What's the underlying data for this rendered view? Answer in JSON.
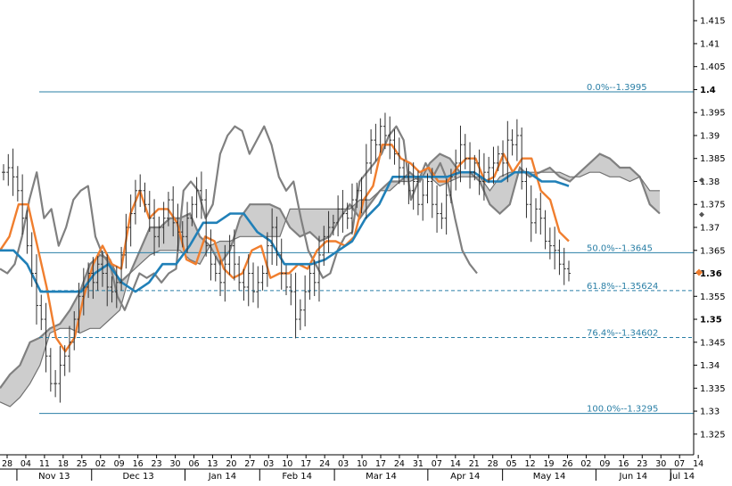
{
  "chart_data": {
    "type": "line",
    "title": "",
    "xlabel": "",
    "ylabel": "",
    "ylim": [
      1.3205,
      1.4195
    ],
    "y_ticks": [
      "1.325",
      "1.33",
      "1.335",
      "1.34",
      "1.345",
      "1.35",
      "1.355",
      "1.36",
      "1.365",
      "1.37",
      "1.375",
      "1.38",
      "1.385",
      "1.39",
      "1.395",
      "1.4",
      "1.405",
      "1.41",
      "1.415"
    ],
    "x_ticks": [
      "28",
      "04",
      "11",
      "18",
      "25",
      "02",
      "09",
      "16",
      "23",
      "30",
      "06",
      "13",
      "20",
      "27",
      "03",
      "10",
      "17",
      "24",
      "03",
      "10",
      "17",
      "24",
      "31",
      "07",
      "14",
      "21",
      "28",
      "05",
      "12",
      "19",
      "26",
      "02",
      "09",
      "16",
      "23",
      "30",
      "07",
      "14"
    ],
    "months": [
      "Nov 13",
      "Dec 13",
      "Jan 14",
      "Feb 14",
      "Mar 14",
      "Apr 14",
      "May 14",
      "Jun 14",
      "Jul 14"
    ],
    "last_price": 1.3602,
    "fib_levels": [
      {
        "label": "0.0%--1.3995",
        "value": 1.3995,
        "style": "solid"
      },
      {
        "label": "50.0%--1.3645",
        "value": 1.3645,
        "style": "solid"
      },
      {
        "label": "61.8%--1.35624",
        "value": 1.35624,
        "style": "dashed"
      },
      {
        "label": "76.4%--1.34602",
        "value": 1.34602,
        "style": "dashed"
      },
      {
        "label": "100.0%--1.3295",
        "value": 1.3295,
        "style": "solid"
      }
    ],
    "series": [
      {
        "type": "ohlc",
        "color": "#303030",
        "values": [
          1.382,
          1.383,
          1.381,
          1.378,
          1.372,
          1.366,
          1.36,
          1.353,
          1.35,
          1.342,
          1.336,
          1.336,
          1.34,
          1.342,
          1.345,
          1.35,
          1.355,
          1.357,
          1.36,
          1.358,
          1.362,
          1.36,
          1.357,
          1.356,
          1.358,
          1.364,
          1.37,
          1.373,
          1.378,
          1.378,
          1.375,
          1.372,
          1.368,
          1.37,
          1.372,
          1.376,
          1.371,
          1.369,
          1.368,
          1.372,
          1.375,
          1.378,
          1.376,
          1.366,
          1.362,
          1.36,
          1.358,
          1.362,
          1.366,
          1.362,
          1.358,
          1.357,
          1.36,
          1.356,
          1.358,
          1.36,
          1.366,
          1.37,
          1.364,
          1.36,
          1.357,
          1.356,
          1.35,
          1.352,
          1.356,
          1.36,
          1.358,
          1.364,
          1.368,
          1.37,
          1.371,
          1.374,
          1.373,
          1.372,
          1.376,
          1.378,
          1.376,
          1.384,
          1.389,
          1.388,
          1.392,
          1.39,
          1.389,
          1.386,
          1.383,
          1.381,
          1.378,
          1.38,
          1.375,
          1.377,
          1.38,
          1.375,
          1.373,
          1.372,
          1.377,
          1.381,
          1.384,
          1.388,
          1.385,
          1.382,
          1.384,
          1.38,
          1.382,
          1.383,
          1.384,
          1.386,
          1.384,
          1.389,
          1.388,
          1.39,
          1.38,
          1.375,
          1.371,
          1.374,
          1.372,
          1.367,
          1.366,
          1.365,
          1.362,
          1.361,
          1.36
        ]
      },
      {
        "type": "line",
        "name": "",
        "color": "#808080",
        "values": [
          1.361,
          1.36,
          1.362,
          1.368,
          1.376,
          1.382,
          1.372,
          1.374,
          1.366,
          1.37,
          1.376,
          1.378,
          1.379,
          1.368,
          1.364,
          1.362,
          1.355,
          1.352,
          1.356,
          1.36,
          1.359,
          1.36,
          1.358,
          1.36,
          1.361,
          1.378,
          1.38,
          1.378,
          1.372,
          1.375,
          1.386,
          1.39,
          1.392,
          1.391,
          1.386,
          1.389,
          1.392,
          1.388,
          1.381,
          1.378,
          1.38,
          1.372,
          1.365,
          1.362,
          1.359,
          1.36,
          1.365,
          1.368,
          1.369,
          1.38,
          1.382,
          1.384,
          1.386,
          1.39,
          1.392,
          1.389,
          1.376,
          1.38,
          1.384,
          1.381,
          1.384,
          1.38,
          1.372,
          1.365,
          1.362,
          1.36
        ]
      },
      {
        "type": "line",
        "name": "",
        "color": "#f07e2e",
        "values": [
          1.365,
          1.368,
          1.375,
          1.375,
          1.366,
          1.357,
          1.346,
          1.343,
          1.346,
          1.355,
          1.362,
          1.366,
          1.362,
          1.361,
          1.373,
          1.378,
          1.372,
          1.374,
          1.374,
          1.371,
          1.363,
          1.362,
          1.368,
          1.367,
          1.361,
          1.359,
          1.36,
          1.365,
          1.366,
          1.359,
          1.36,
          1.36,
          1.362,
          1.361,
          1.365,
          1.367,
          1.367,
          1.366,
          1.368,
          1.376,
          1.379,
          1.388,
          1.388,
          1.385,
          1.384,
          1.382,
          1.383,
          1.38,
          1.38,
          1.383,
          1.385,
          1.385,
          1.38,
          1.381,
          1.386,
          1.382,
          1.385,
          1.385,
          1.378,
          1.376,
          1.369,
          1.367
        ]
      },
      {
        "type": "line",
        "name": "",
        "color": "#2080b8",
        "values": [
          1.365,
          1.365,
          1.362,
          1.356,
          1.356,
          1.356,
          1.356,
          1.36,
          1.362,
          1.358,
          1.356,
          1.358,
          1.362,
          1.362,
          1.366,
          1.371,
          1.371,
          1.373,
          1.373,
          1.369,
          1.367,
          1.362,
          1.362,
          1.362,
          1.363,
          1.365,
          1.367,
          1.372,
          1.375,
          1.381,
          1.381,
          1.381,
          1.381,
          1.381,
          1.382,
          1.382,
          1.38,
          1.38,
          1.382,
          1.382,
          1.38,
          1.38,
          1.379
        ]
      },
      {
        "type": "cloud",
        "name": "",
        "color": "#808080",
        "fill": "#c8c8c8",
        "span_a": [
          1.335,
          1.338,
          1.34,
          1.345,
          1.346,
          1.348,
          1.349,
          1.352,
          1.356,
          1.362,
          1.364,
          1.363,
          1.358,
          1.36,
          1.365,
          1.37,
          1.37,
          1.372,
          1.372,
          1.373,
          1.368,
          1.366,
          1.362,
          1.365,
          1.372,
          1.375,
          1.375,
          1.375,
          1.374,
          1.37,
          1.368,
          1.369,
          1.367,
          1.368,
          1.372,
          1.375,
          1.372,
          1.375,
          1.378,
          1.38,
          1.38,
          1.382,
          1.38,
          1.384,
          1.386,
          1.385,
          1.382,
          1.382,
          1.38,
          1.375,
          1.373,
          1.375,
          1.383,
          1.381,
          1.382,
          1.383,
          1.381,
          1.38,
          1.382,
          1.384,
          1.386,
          1.385,
          1.383,
          1.383,
          1.381,
          1.375,
          1.373
        ],
        "span_b": [
          1.332,
          1.331,
          1.333,
          1.336,
          1.34,
          1.347,
          1.348,
          1.348,
          1.347,
          1.348,
          1.348,
          1.35,
          1.352,
          1.36,
          1.362,
          1.364,
          1.365,
          1.365,
          1.365,
          1.363,
          1.362,
          1.366,
          1.367,
          1.367,
          1.368,
          1.368,
          1.368,
          1.368,
          1.368,
          1.374,
          1.374,
          1.374,
          1.374,
          1.374,
          1.374,
          1.374,
          1.376,
          1.376,
          1.378,
          1.378,
          1.38,
          1.38,
          1.381,
          1.381,
          1.379,
          1.38,
          1.381,
          1.381,
          1.381,
          1.378,
          1.381,
          1.382,
          1.382,
          1.382,
          1.382,
          1.382,
          1.382,
          1.381,
          1.381,
          1.382,
          1.382,
          1.381,
          1.381,
          1.38,
          1.381,
          1.378,
          1.378
        ]
      }
    ]
  }
}
